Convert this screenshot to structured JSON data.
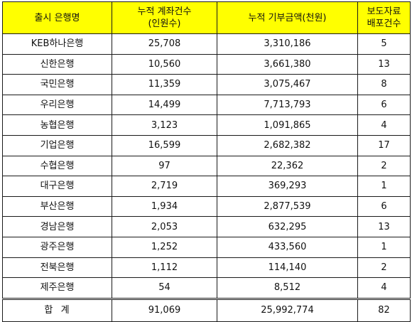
{
  "table": {
    "headers": [
      {
        "lines": [
          "출시 은행명"
        ]
      },
      {
        "lines": [
          "누적 계좌건수",
          "(인원수)"
        ]
      },
      {
        "lines": [
          "누적 기부금액(천원)"
        ]
      },
      {
        "lines": [
          "보도자료",
          "배포건수"
        ]
      }
    ],
    "rows": [
      [
        "KEB하나은행",
        "25,708",
        "3,310,186",
        "5"
      ],
      [
        "신한은행",
        "10,560",
        "3,661,380",
        "13"
      ],
      [
        "국민은행",
        "11,359",
        "3,075,467",
        "8"
      ],
      [
        "우리은행",
        "14,499",
        "7,713,793",
        "6"
      ],
      [
        "농협은행",
        "3,123",
        "1,091,865",
        "4"
      ],
      [
        "기업은행",
        "16,599",
        "2,682,382",
        "17"
      ],
      [
        "수협은행",
        "97",
        "22,362",
        "2"
      ],
      [
        "대구은행",
        "2,719",
        "369,293",
        "1"
      ],
      [
        "부산은행",
        "1,934",
        "2,877,539",
        "6"
      ],
      [
        "경남은행",
        "2,053",
        "632,295",
        "13"
      ],
      [
        "광주은행",
        "1,252",
        "433,560",
        "1"
      ],
      [
        "전북은행",
        "1,112",
        "114,140",
        "2"
      ],
      [
        "제주은행",
        "54",
        "8,512",
        "4"
      ]
    ],
    "total": [
      "합  계",
      "91,069",
      "25,992,774",
      "82"
    ]
  },
  "colors": {
    "header_bg": "#ffff00",
    "border": "#1a1a1a",
    "text": "#111111"
  }
}
